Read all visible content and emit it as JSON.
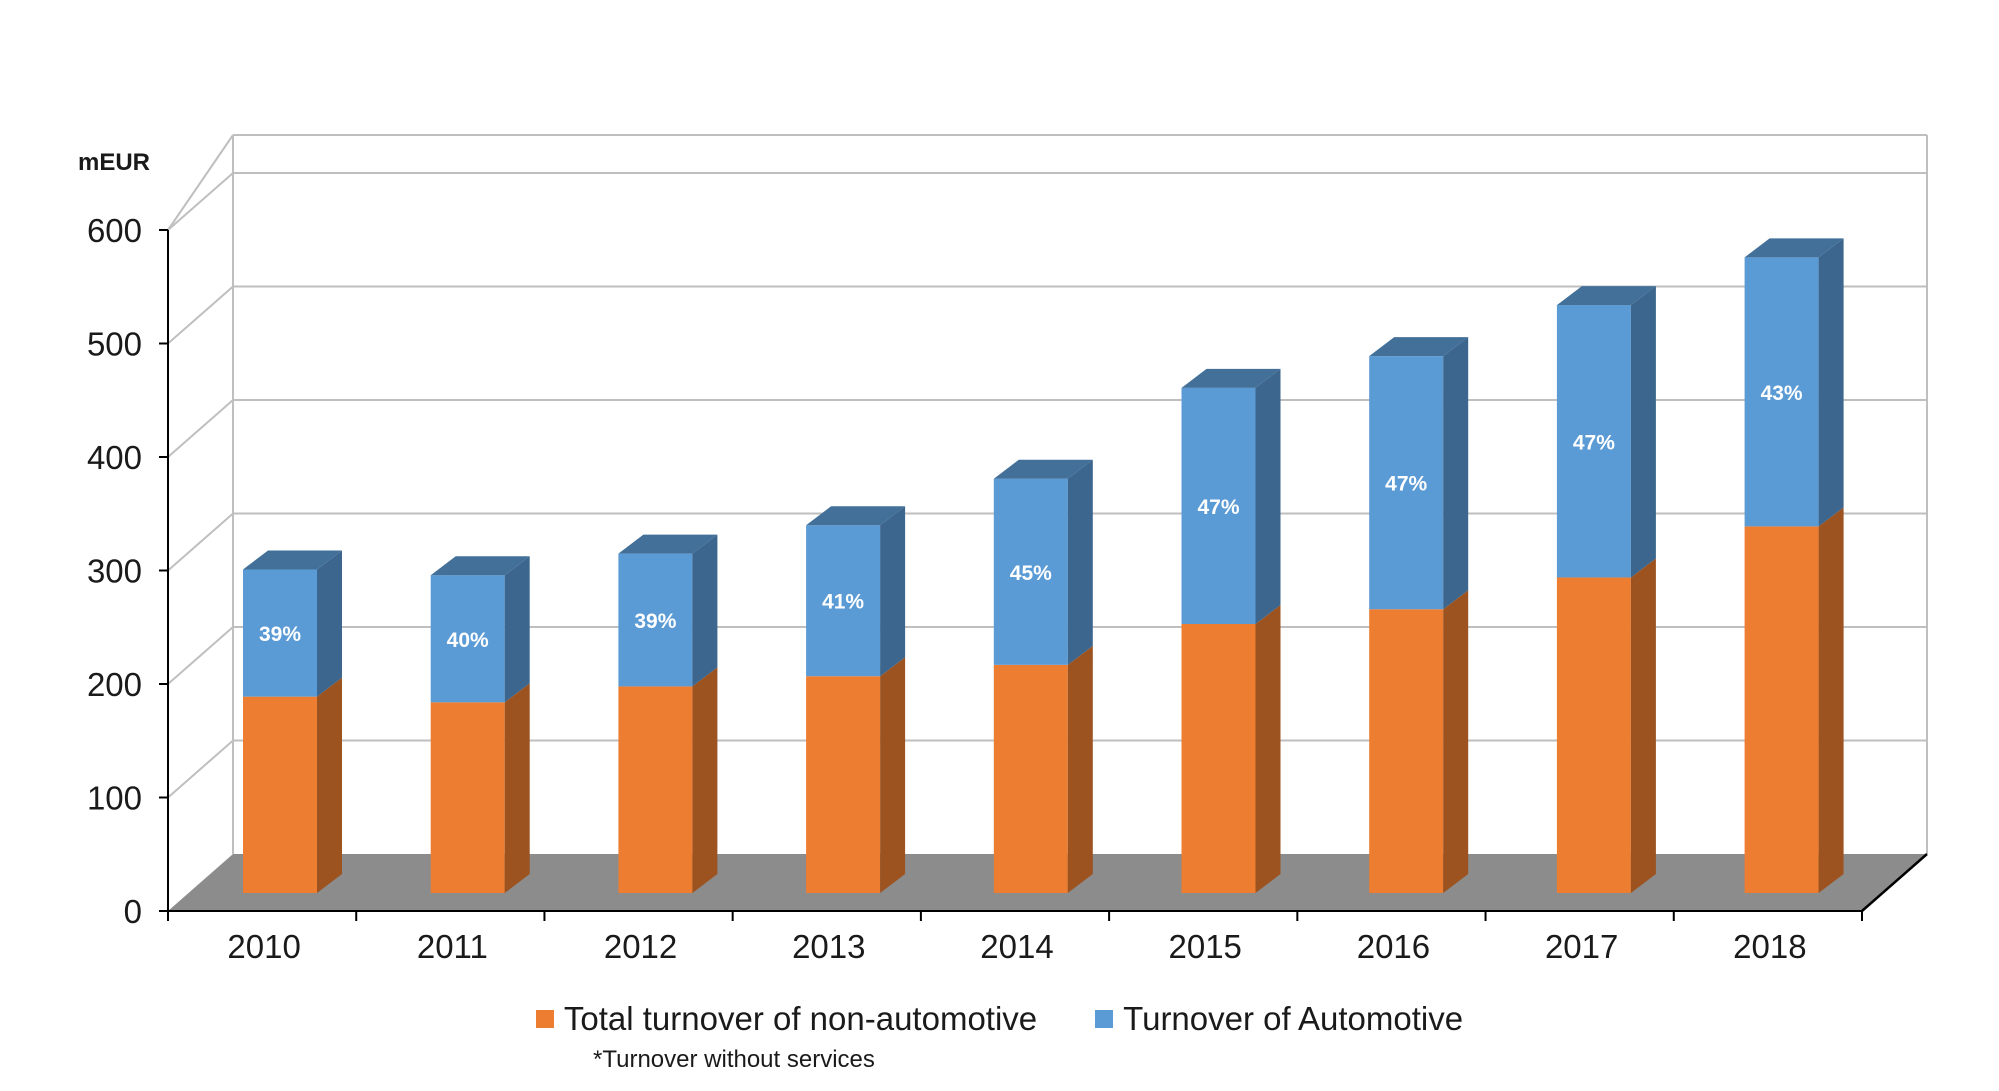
{
  "chart_data": {
    "type": "bar",
    "stacked": true,
    "three_d": true,
    "unit_label": "mEUR",
    "categories": [
      "2010",
      "2011",
      "2012",
      "2013",
      "2014",
      "2015",
      "2016",
      "2017",
      "2018"
    ],
    "series": [
      {
        "name": "Total turnover of non-automotive",
        "color": "#ED7D31",
        "values": [
          173,
          168,
          182,
          191,
          201,
          237,
          250,
          278,
          323
        ]
      },
      {
        "name": "Turnover of Automotive",
        "color": "#5B9BD5",
        "values": [
          112,
          112,
          117,
          133,
          164,
          208,
          223,
          240,
          237
        ]
      }
    ],
    "bar_labels": [
      "39%",
      "40%",
      "39%",
      "41%",
      "45%",
      "47%",
      "47%",
      "47%",
      "43%"
    ],
    "yticks": [
      "0",
      "100",
      "200",
      "300",
      "400",
      "500",
      "600"
    ],
    "ylim": [
      0,
      600
    ],
    "grid": true,
    "legend_position": "bottom",
    "floor_color": "#8C8C8C"
  },
  "footnote": "*Turnover without services"
}
